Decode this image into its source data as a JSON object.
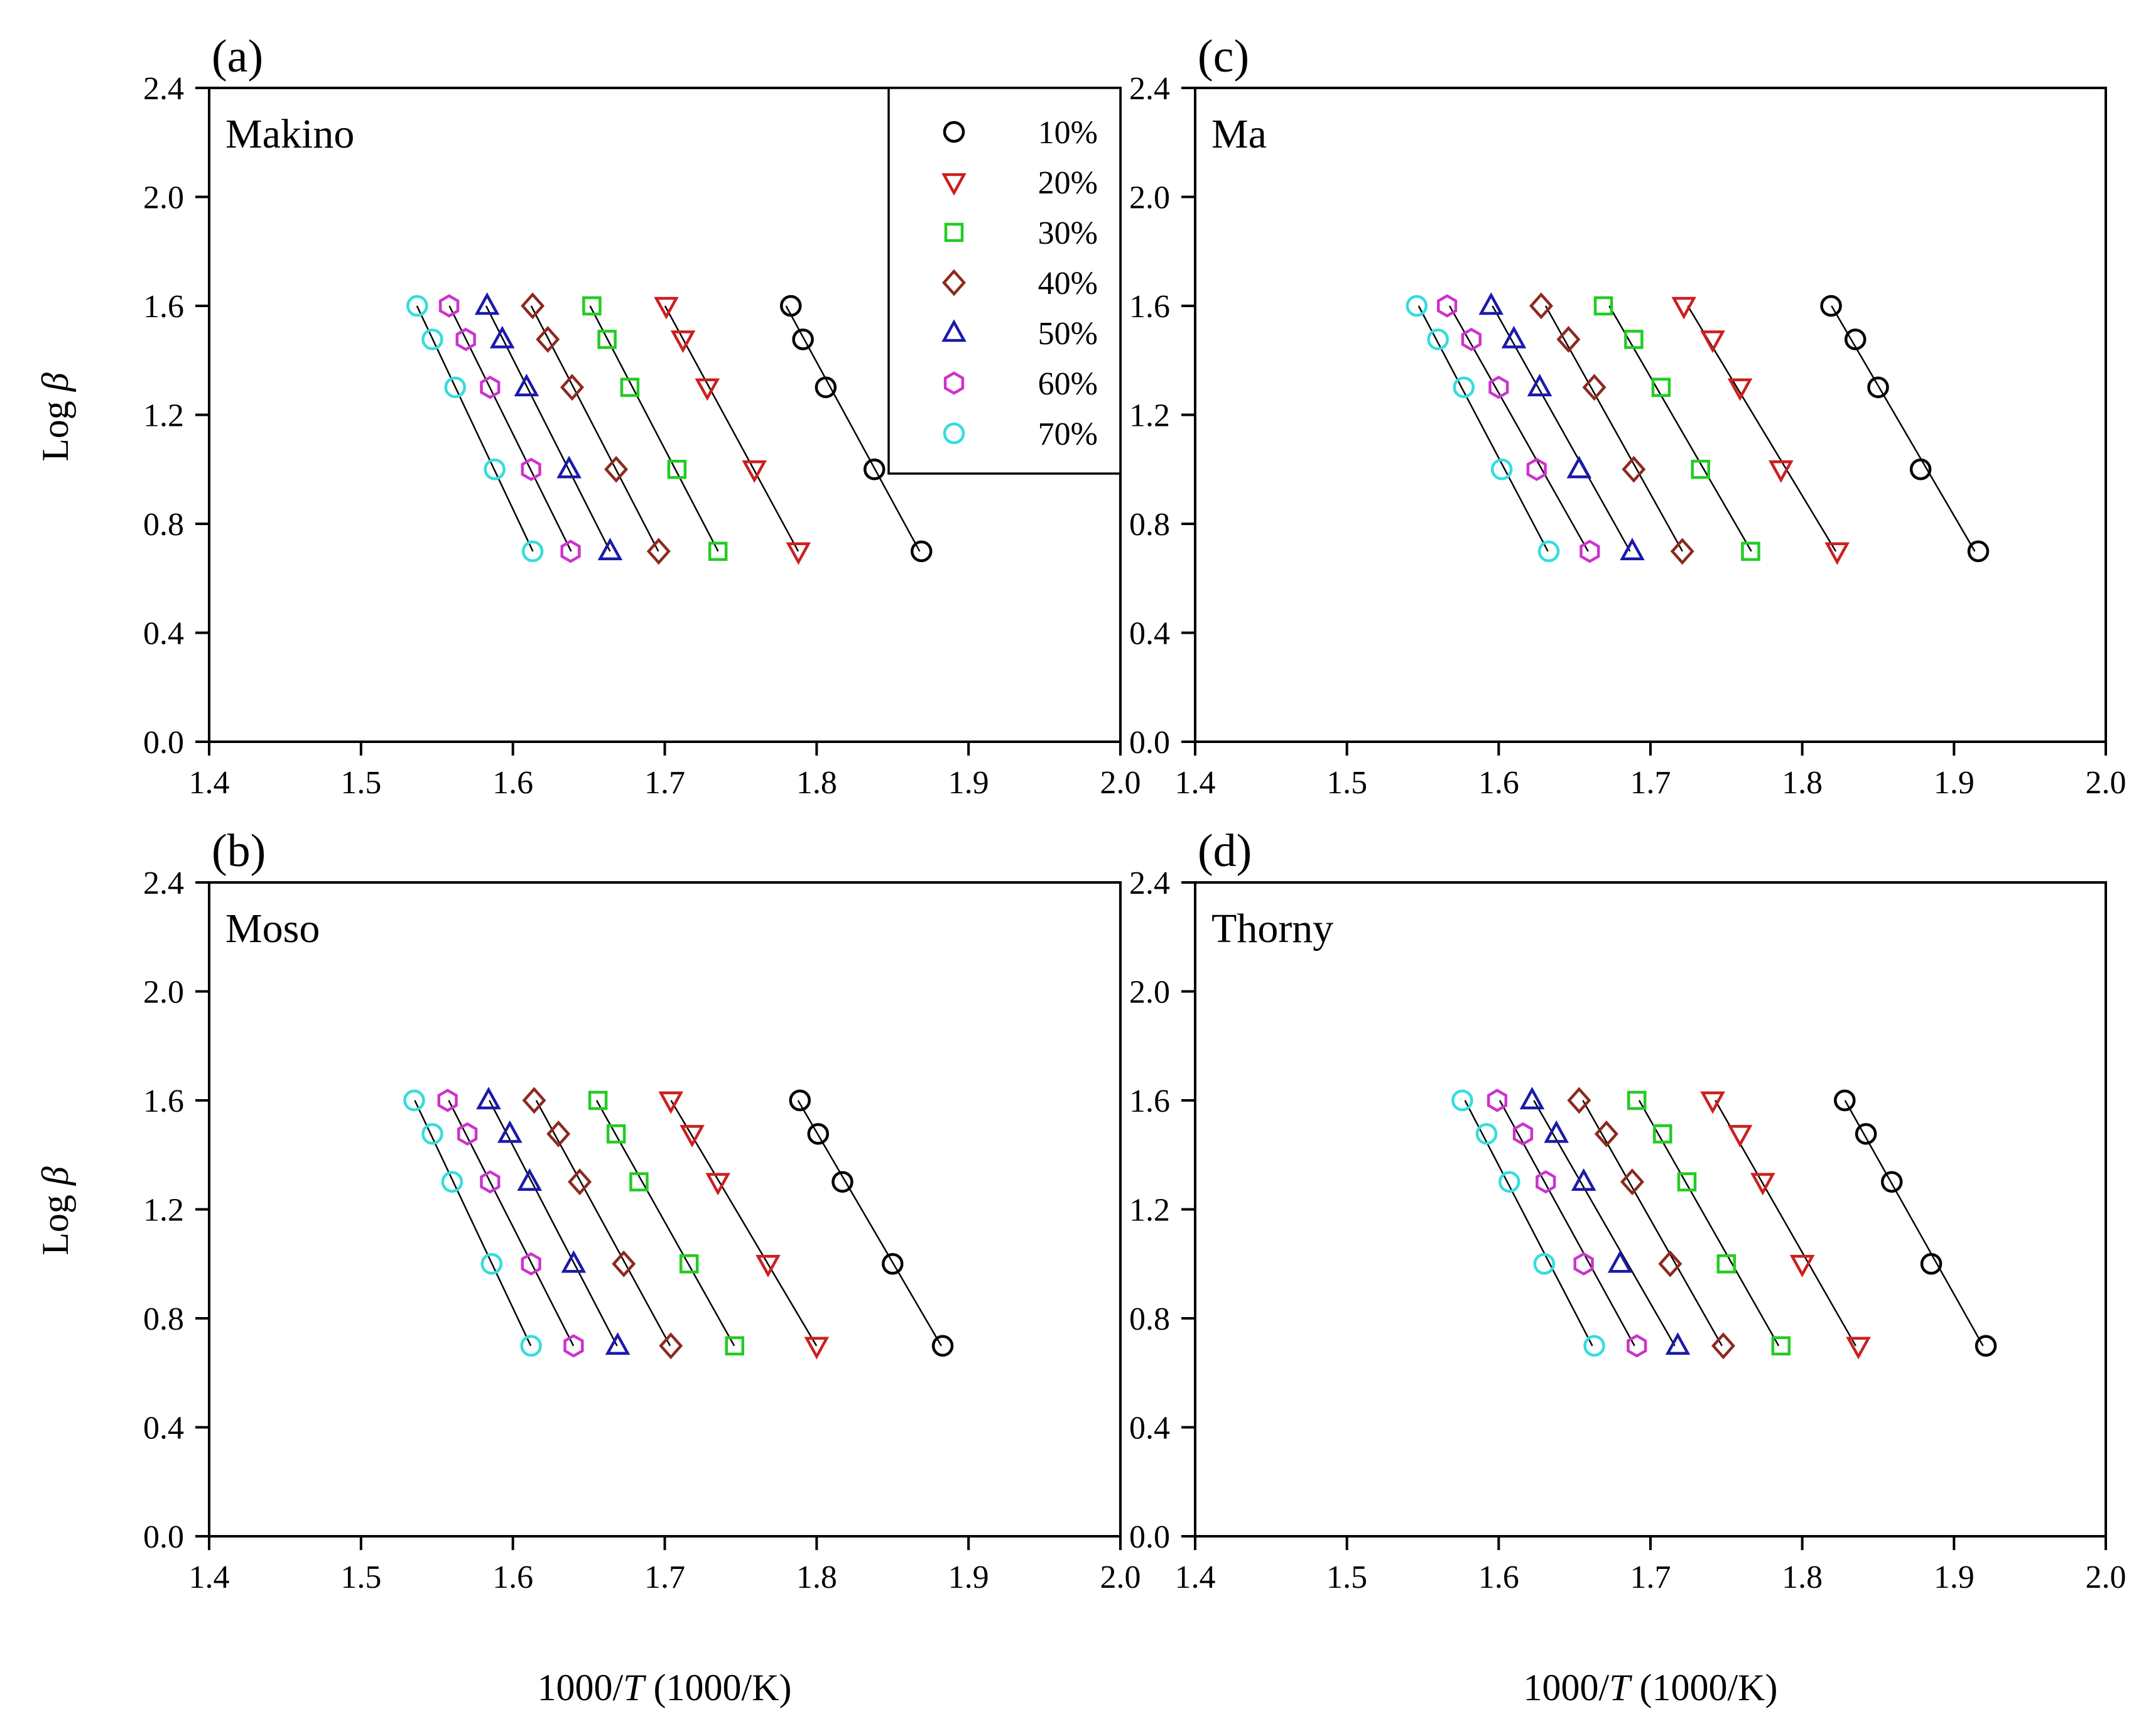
{
  "figure": {
    "xlabel_num": "1000/",
    "xlabel_var": "T",
    "xlabel_unit": " (1000/K)",
    "ylabel_prefix": "Log ",
    "ylabel_var": "β"
  },
  "chart_data": [
    {
      "type": "scatter",
      "panel_tag": "(a)",
      "title": "Makino",
      "xlim": [
        1.4,
        2.0
      ],
      "ylim": [
        0.0,
        2.4
      ],
      "x_ticks": [
        "1.4",
        "1.5",
        "1.6",
        "1.7",
        "1.8",
        "1.9",
        "2.0"
      ],
      "y_ticks": [
        "0.0",
        "0.4",
        "0.8",
        "1.2",
        "1.6",
        "2.0",
        "2.4"
      ],
      "y": [
        1.6,
        1.477,
        1.301,
        1.0,
        0.699
      ],
      "legend": "top-right",
      "series": [
        {
          "name": "10%",
          "color": "#000000",
          "marker": "circle",
          "x": [
            1.783,
            1.791,
            1.806,
            1.838,
            1.869
          ]
        },
        {
          "name": "20%",
          "color": "#cc1f1f",
          "marker": "triangle-down",
          "x": [
            1.701,
            1.712,
            1.728,
            1.759,
            1.788
          ]
        },
        {
          "name": "30%",
          "color": "#22cc22",
          "marker": "square",
          "x": [
            1.652,
            1.662,
            1.677,
            1.708,
            1.735
          ]
        },
        {
          "name": "40%",
          "color": "#8b2a1e",
          "marker": "diamond",
          "x": [
            1.613,
            1.623,
            1.639,
            1.668,
            1.696
          ]
        },
        {
          "name": "50%",
          "color": "#1a1aaa",
          "marker": "triangle-up",
          "x": [
            1.583,
            1.593,
            1.609,
            1.637,
            1.664
          ]
        },
        {
          "name": "60%",
          "color": "#cc33cc",
          "marker": "hexagon",
          "x": [
            1.558,
            1.569,
            1.585,
            1.612,
            1.638
          ]
        },
        {
          "name": "70%",
          "color": "#33dddd",
          "marker": "circle",
          "x": [
            1.537,
            1.547,
            1.562,
            1.588,
            1.613
          ]
        }
      ]
    },
    {
      "type": "scatter",
      "panel_tag": "(b)",
      "title": "Moso",
      "xlim": [
        1.4,
        2.0
      ],
      "ylim": [
        0.0,
        2.4
      ],
      "x_ticks": [
        "1.4",
        "1.5",
        "1.6",
        "1.7",
        "1.8",
        "1.9",
        "2.0"
      ],
      "y_ticks": [
        "0.0",
        "0.4",
        "0.8",
        "1.2",
        "1.6",
        "2.0",
        "2.4"
      ],
      "y": [
        1.6,
        1.477,
        1.301,
        1.0,
        0.699
      ],
      "series": [
        {
          "name": "10%",
          "color": "#000000",
          "marker": "circle",
          "x": [
            1.789,
            1.801,
            1.817,
            1.85,
            1.883
          ]
        },
        {
          "name": "20%",
          "color": "#cc1f1f",
          "marker": "triangle-down",
          "x": [
            1.704,
            1.718,
            1.735,
            1.768,
            1.8
          ]
        },
        {
          "name": "30%",
          "color": "#22cc22",
          "marker": "square",
          "x": [
            1.656,
            1.668,
            1.683,
            1.716,
            1.746
          ]
        },
        {
          "name": "40%",
          "color": "#8b2a1e",
          "marker": "diamond",
          "x": [
            1.614,
            1.63,
            1.644,
            1.673,
            1.704
          ]
        },
        {
          "name": "50%",
          "color": "#1a1aaa",
          "marker": "triangle-up",
          "x": [
            1.584,
            1.598,
            1.611,
            1.64,
            1.669
          ]
        },
        {
          "name": "60%",
          "color": "#cc33cc",
          "marker": "hexagon",
          "x": [
            1.557,
            1.57,
            1.585,
            1.612,
            1.64
          ]
        },
        {
          "name": "70%",
          "color": "#33dddd",
          "marker": "circle",
          "x": [
            1.535,
            1.547,
            1.56,
            1.586,
            1.612
          ]
        }
      ]
    },
    {
      "type": "scatter",
      "panel_tag": "(c)",
      "title": "Ma",
      "xlim": [
        1.4,
        2.0
      ],
      "ylim": [
        0.0,
        2.4
      ],
      "x_ticks": [
        "1.4",
        "1.5",
        "1.6",
        "1.7",
        "1.8",
        "1.9",
        "2.0"
      ],
      "y_ticks": [
        "0.0",
        "0.4",
        "0.8",
        "1.2",
        "1.6",
        "2.0",
        "2.4"
      ],
      "y": [
        1.6,
        1.477,
        1.301,
        1.0,
        0.699
      ],
      "series": [
        {
          "name": "10%",
          "color": "#000000",
          "marker": "circle",
          "x": [
            1.819,
            1.835,
            1.85,
            1.878,
            1.916
          ]
        },
        {
          "name": "20%",
          "color": "#cc1f1f",
          "marker": "triangle-down",
          "x": [
            1.722,
            1.741,
            1.759,
            1.786,
            1.823
          ]
        },
        {
          "name": "30%",
          "color": "#22cc22",
          "marker": "square",
          "x": [
            1.669,
            1.689,
            1.707,
            1.733,
            1.766
          ]
        },
        {
          "name": "40%",
          "color": "#8b2a1e",
          "marker": "diamond",
          "x": [
            1.628,
            1.646,
            1.663,
            1.689,
            1.721
          ]
        },
        {
          "name": "50%",
          "color": "#1a1aaa",
          "marker": "triangle-up",
          "x": [
            1.595,
            1.61,
            1.627,
            1.653,
            1.688
          ]
        },
        {
          "name": "60%",
          "color": "#cc33cc",
          "marker": "hexagon",
          "x": [
            1.566,
            1.582,
            1.6,
            1.625,
            1.66
          ]
        },
        {
          "name": "70%",
          "color": "#33dddd",
          "marker": "circle",
          "x": [
            1.546,
            1.56,
            1.577,
            1.602,
            1.633
          ]
        }
      ]
    },
    {
      "type": "scatter",
      "panel_tag": "(d)",
      "title": "Thorny",
      "xlim": [
        1.4,
        2.0
      ],
      "ylim": [
        0.0,
        2.4
      ],
      "x_ticks": [
        "1.4",
        "1.5",
        "1.6",
        "1.7",
        "1.8",
        "1.9",
        "2.0"
      ],
      "y_ticks": [
        "0.0",
        "0.4",
        "0.8",
        "1.2",
        "1.6",
        "2.0",
        "2.4"
      ],
      "y": [
        1.6,
        1.477,
        1.301,
        1.0,
        0.699
      ],
      "series": [
        {
          "name": "10%",
          "color": "#000000",
          "marker": "circle",
          "x": [
            1.828,
            1.842,
            1.859,
            1.885,
            1.921
          ]
        },
        {
          "name": "20%",
          "color": "#cc1f1f",
          "marker": "triangle-down",
          "x": [
            1.741,
            1.759,
            1.774,
            1.8,
            1.837
          ]
        },
        {
          "name": "30%",
          "color": "#22cc22",
          "marker": "square",
          "x": [
            1.691,
            1.708,
            1.724,
            1.75,
            1.786
          ]
        },
        {
          "name": "40%",
          "color": "#8b2a1e",
          "marker": "diamond",
          "x": [
            1.653,
            1.671,
            1.688,
            1.713,
            1.748
          ]
        },
        {
          "name": "50%",
          "color": "#1a1aaa",
          "marker": "triangle-up",
          "x": [
            1.622,
            1.638,
            1.656,
            1.68,
            1.718
          ]
        },
        {
          "name": "60%",
          "color": "#cc33cc",
          "marker": "hexagon",
          "x": [
            1.599,
            1.616,
            1.631,
            1.656,
            1.691
          ]
        },
        {
          "name": "70%",
          "color": "#33dddd",
          "marker": "circle",
          "x": [
            1.576,
            1.592,
            1.607,
            1.63,
            1.663
          ]
        }
      ]
    }
  ]
}
